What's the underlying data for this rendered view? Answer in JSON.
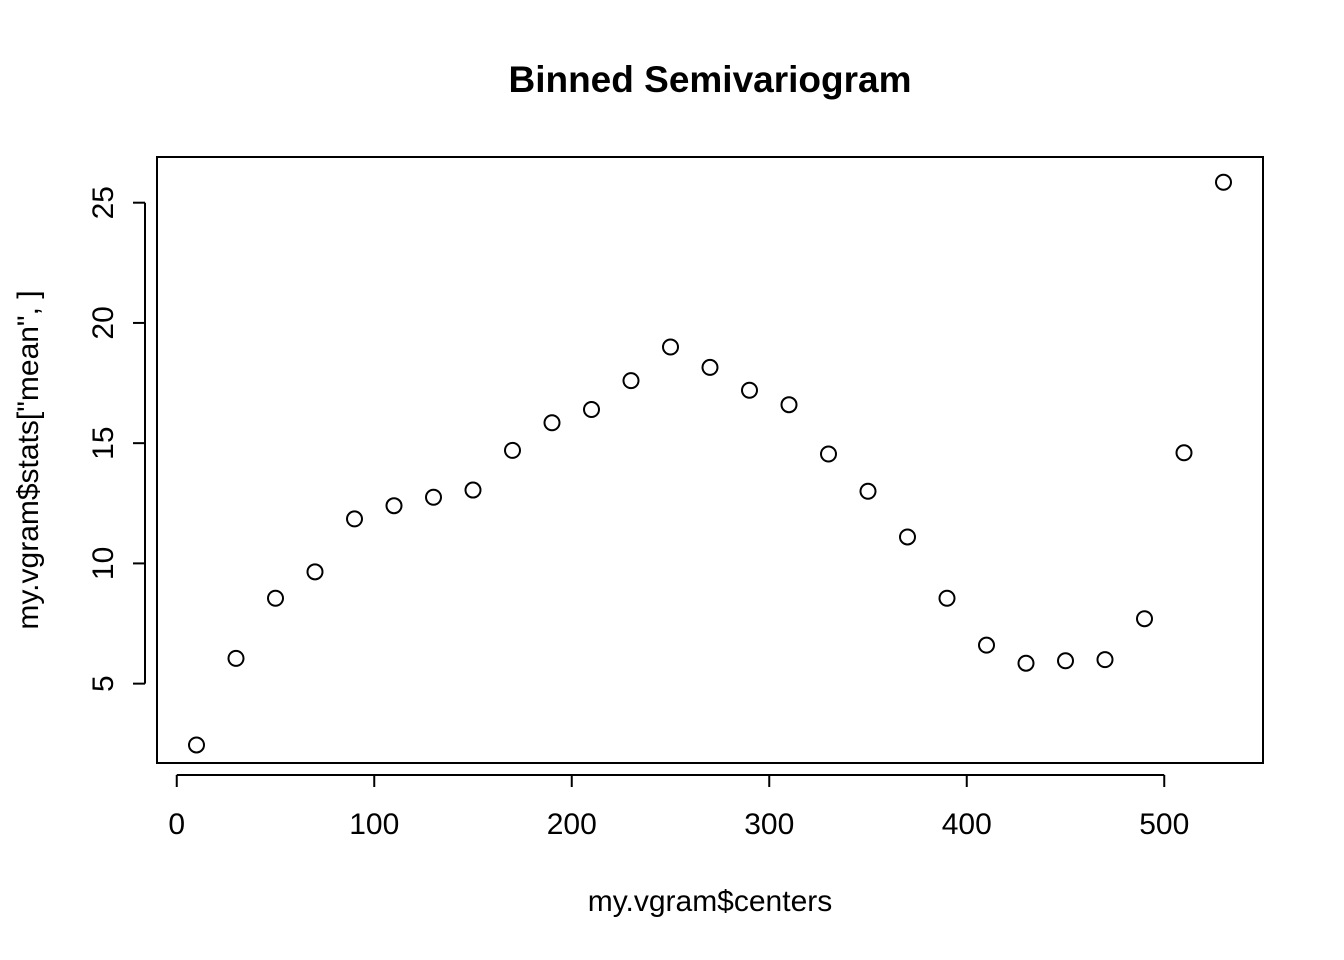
{
  "chart_data": {
    "type": "scatter",
    "title": "Binned Semivariogram",
    "xlabel": "my.vgram$centers",
    "ylabel": "my.vgram$stats[\"mean\", ]",
    "xlim": [
      -10,
      550
    ],
    "ylim": [
      1.7,
      26.9
    ],
    "xticks": [
      0,
      100,
      200,
      300,
      400,
      500
    ],
    "yticks": [
      5,
      10,
      15,
      20,
      25
    ],
    "grid": false,
    "marker": "open-circle",
    "x": [
      10,
      30,
      50,
      70,
      90,
      110,
      130,
      150,
      170,
      190,
      210,
      230,
      250,
      270,
      290,
      310,
      330,
      350,
      370,
      390,
      410,
      430,
      450,
      470,
      490,
      510,
      530
    ],
    "y": [
      2.45,
      6.05,
      8.55,
      9.65,
      11.85,
      12.4,
      12.75,
      13.05,
      14.7,
      15.85,
      16.4,
      17.6,
      19.0,
      18.15,
      17.2,
      16.6,
      14.55,
      13.0,
      11.1,
      8.55,
      6.6,
      5.85,
      5.95,
      6.0,
      7.7,
      14.6,
      25.85
    ]
  }
}
